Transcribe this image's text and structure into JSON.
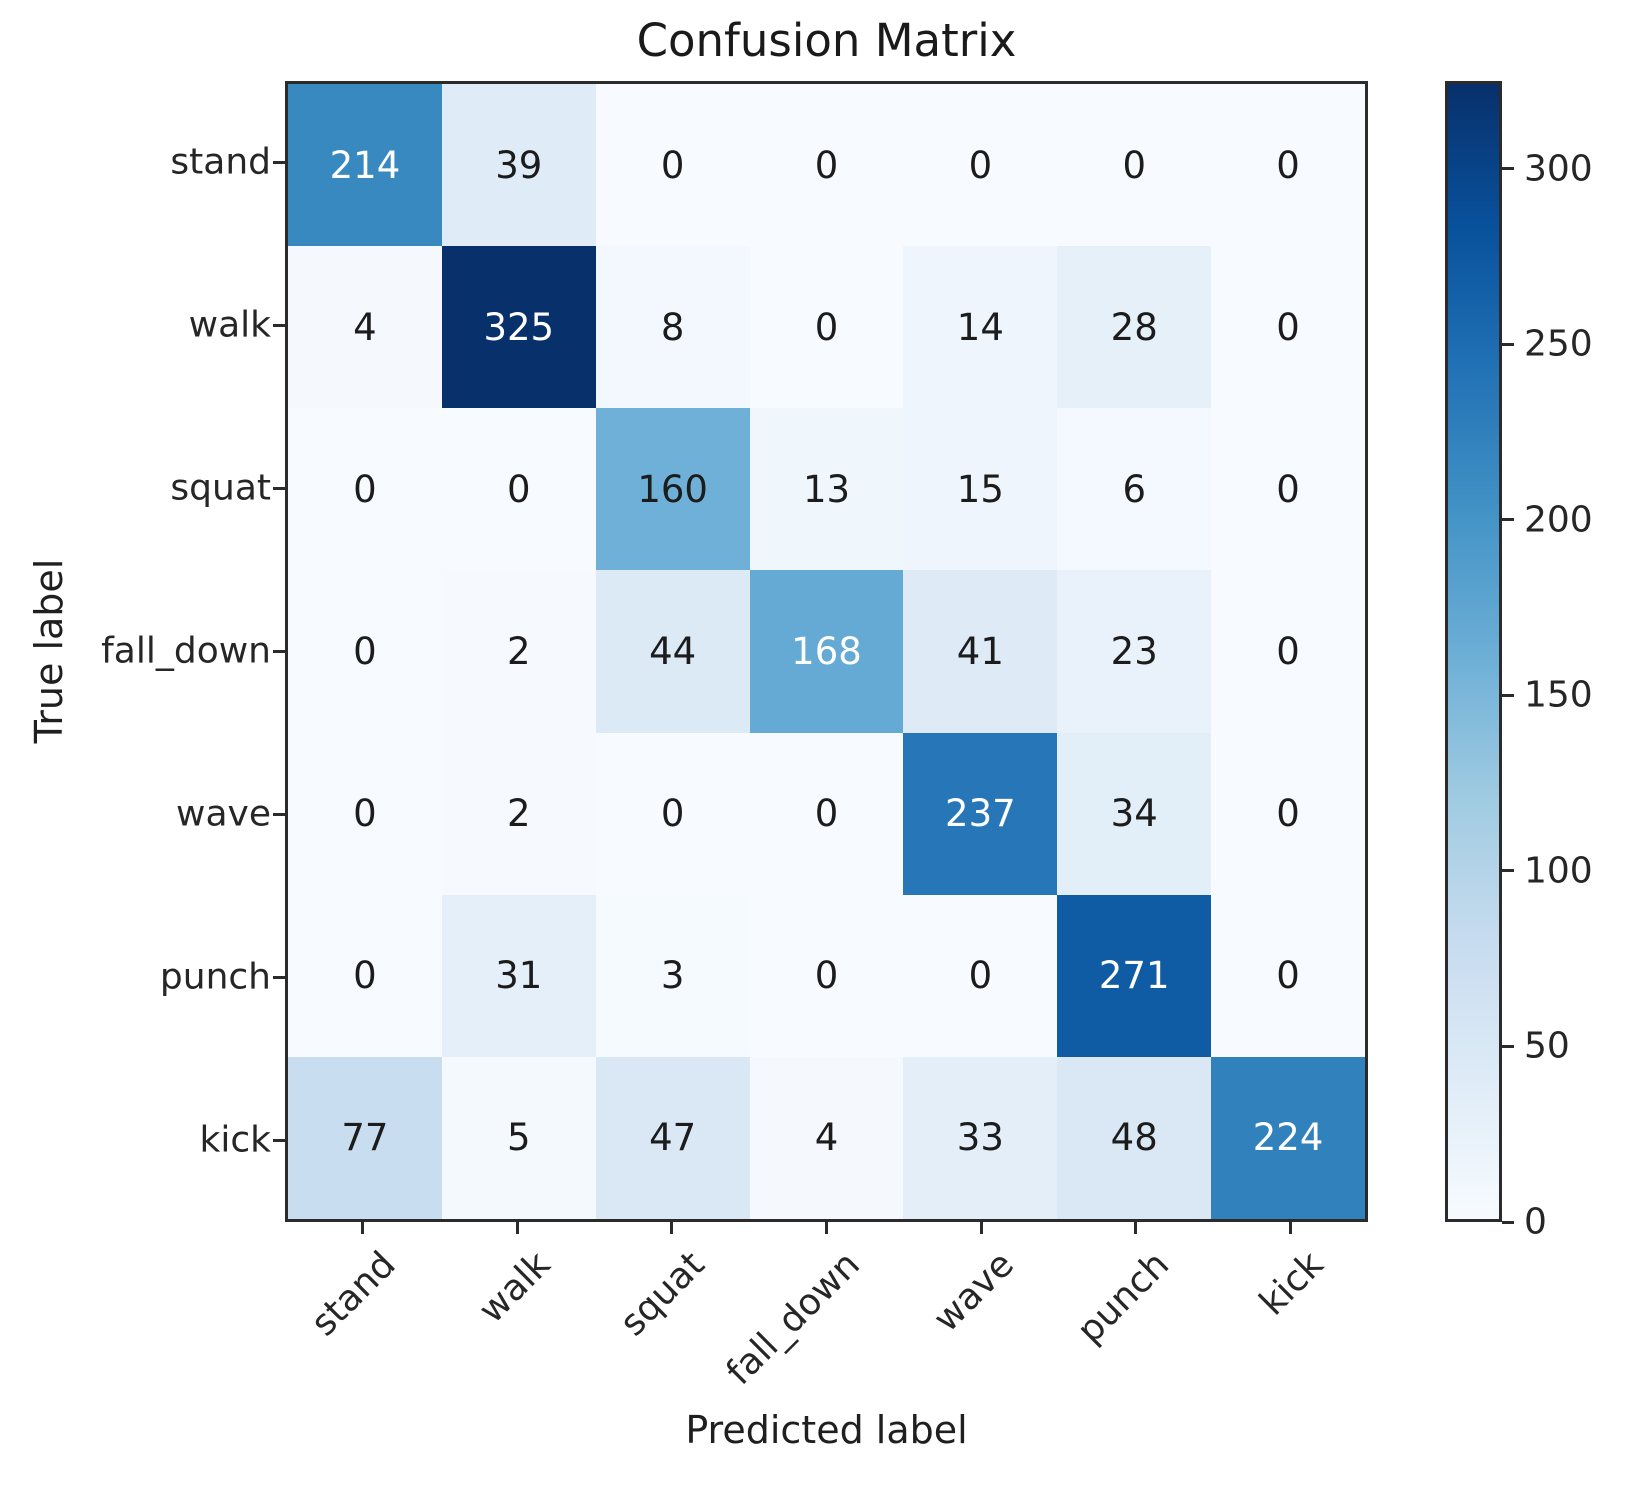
{
  "chart_data": {
    "type": "heatmap",
    "title": "Confusion Matrix",
    "xlabel": "Predicted label",
    "ylabel": "True label",
    "x_categories": [
      "stand",
      "walk",
      "squat",
      "fall_down",
      "wave",
      "punch",
      "kick"
    ],
    "y_categories": [
      "stand",
      "walk",
      "squat",
      "fall_down",
      "wave",
      "punch",
      "kick"
    ],
    "matrix": [
      [
        214,
        39,
        0,
        0,
        0,
        0,
        0
      ],
      [
        4,
        325,
        8,
        0,
        14,
        28,
        0
      ],
      [
        0,
        0,
        160,
        13,
        15,
        6,
        0
      ],
      [
        0,
        2,
        44,
        168,
        41,
        23,
        0
      ],
      [
        0,
        2,
        0,
        0,
        237,
        34,
        0
      ],
      [
        0,
        31,
        3,
        0,
        0,
        271,
        0
      ],
      [
        77,
        5,
        47,
        4,
        33,
        48,
        224
      ]
    ],
    "colorbar_ticks": [
      0,
      50,
      100,
      150,
      200,
      250,
      300
    ],
    "vmin": 0,
    "vmax": 325,
    "colormap": "Blues",
    "colormap_hex": [
      "#f7fbff",
      "#deebf7",
      "#c6dbef",
      "#9ecae1",
      "#6baed6",
      "#4292c6",
      "#2171b5",
      "#08519c",
      "#08306b"
    ],
    "cell_text_light": "#ffffff",
    "cell_text_dark": "#1c1c1c",
    "legend_position": "right",
    "grid": false
  }
}
